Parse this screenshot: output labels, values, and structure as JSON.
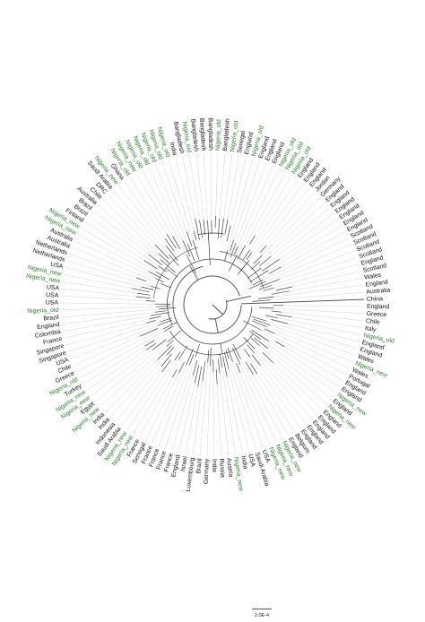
{
  "tree": {
    "tips": [
      "China",
      "England",
      "Greece",
      "Chile",
      "Italy",
      "Nigeria_old",
      "England",
      "England",
      "Wales",
      "Nigeria_new",
      "Wales",
      "Portugal",
      "England",
      "England",
      "Nigeria_new",
      "England",
      "Nigeria_new",
      "England",
      "England",
      "England",
      "England",
      "England",
      "Belgium",
      "England",
      "Nigeria_new",
      "Nigeria_new",
      "Nigeria_new",
      "USA",
      "Saudi Arabia",
      "USA",
      "India",
      "Nigeria_new",
      "Austria",
      "Russia",
      "India",
      "Germany",
      "Brazil",
      "Luxembourg",
      "Israel",
      "England",
      "France",
      "France",
      "France",
      "France",
      "Senegal",
      "France",
      "Nigeria_new",
      "Nigeria_new",
      "Saudi Arabia",
      "Indonesia",
      "India",
      "India",
      "Nigeria_new",
      "Egypt",
      "Nigeria_new",
      "Nigeria_new",
      "Turkey",
      "Nigeria_old",
      "Greece",
      "Chile",
      "USA",
      "Singapore",
      "Singapore",
      "France",
      "Colombia",
      "England",
      "Brazil",
      "Nigeria_old",
      "USA",
      "USA",
      "USA",
      "Nigeria_new",
      "Nigeria_new",
      "USA",
      "Netherlands",
      "Netherlands",
      "Australia",
      "Australia",
      "Nigeria_new",
      "Nigeria_new",
      "Finland",
      "Brazil",
      "Brazil",
      "Australia",
      "Chile",
      "DRC",
      "Saudi Arabia",
      "Nigeria_new",
      "Ghana",
      "Nigeria_old",
      "Nigeria_new",
      "Nigeria_old",
      "Nigeria_old",
      "Nigeria_old",
      "Nigeria_old",
      "Nigeria_old",
      "India",
      "Bangladesh",
      "Nigeria_old",
      "Bangladesh",
      "Bangladesh",
      "Bangladesh",
      "Nigeria_old",
      "Bangladesh",
      "Nigeria_old",
      "Senegal",
      "England",
      "Nigeria_old",
      "England",
      "England",
      "England",
      "Nigeria_old",
      "Nigeria_old",
      "Nigeria_old",
      "England",
      "England",
      "England",
      "Jordan",
      "Germany",
      "England",
      "England",
      "England",
      "England",
      "England",
      "England",
      "Scotland",
      "Scotland",
      "Scotland",
      "Scotland",
      "England",
      "Scotland",
      "Wales",
      "England",
      "Australia"
    ],
    "scale_bar_label": "2.0E-4",
    "colors": {
      "nigeria_label": "#2f7d2f",
      "default_label": "#111111",
      "branches": "#444444",
      "guide_lines": "#cfcfcf"
    }
  }
}
